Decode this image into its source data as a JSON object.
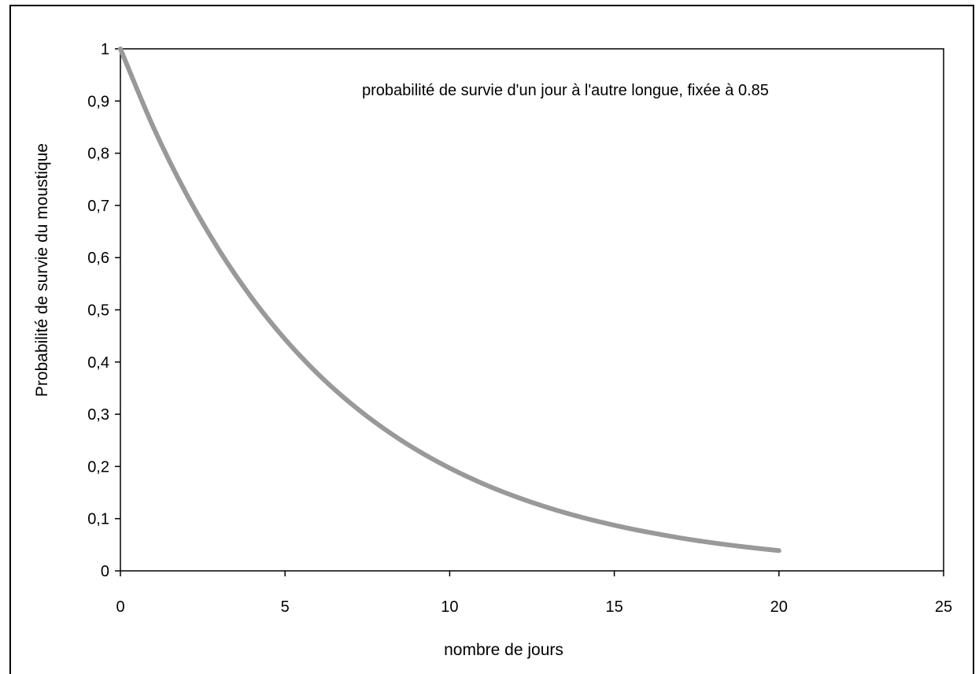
{
  "chart_data": {
    "type": "line",
    "title": "",
    "xlabel": "nombre de jours",
    "ylabel": "Probabilité de survie du moustique",
    "annotation": "probabilité de survie d'un jour à l'autre longue, fixée à 0.85",
    "xlim": [
      0,
      25
    ],
    "ylim": [
      0,
      1
    ],
    "x_ticks": [
      "0",
      "5",
      "10",
      "15",
      "20",
      "25"
    ],
    "y_ticks": [
      "0",
      "0,1",
      "0,2",
      "0,3",
      "0,4",
      "0,5",
      "0,6",
      "0,7",
      "0,8",
      "0,9",
      "1"
    ],
    "grid": false,
    "legend": "none",
    "line_color": "#999999",
    "series": [
      {
        "x": [
          0,
          1,
          2,
          3,
          4,
          5,
          6,
          7,
          8,
          9,
          10,
          11,
          12,
          13,
          14,
          15,
          16,
          17,
          18,
          19,
          20
        ],
        "y": [
          1,
          0.85,
          0.7225,
          0.6141,
          0.522,
          0.4437,
          0.3771,
          0.3206,
          0.2725,
          0.2316,
          0.1969,
          0.1673,
          0.1422,
          0.1209,
          0.1028,
          0.0874,
          0.0743,
          0.0631,
          0.0536,
          0.0456,
          0.0388
        ]
      }
    ]
  }
}
